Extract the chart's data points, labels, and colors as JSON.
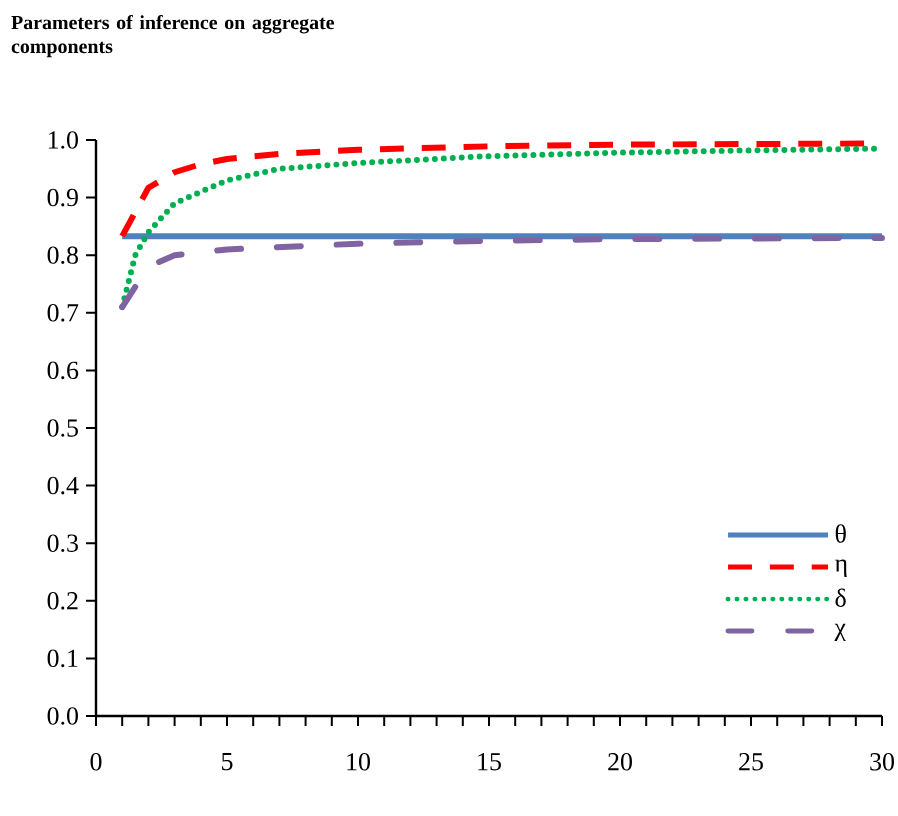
{
  "chart_data": {
    "type": "line",
    "title": "Parameters of inference on aggregate components",
    "xlim": [
      0,
      30
    ],
    "ylim": [
      0.0,
      1.0
    ],
    "xticks": [
      0,
      {
        "value": 1,
        "label": null
      },
      {
        "value": 2,
        "label": null
      },
      {
        "value": 3,
        "label": null
      },
      {
        "value": 4,
        "label": null
      },
      5,
      {
        "value": 6,
        "label": null
      },
      {
        "value": 7,
        "label": null
      },
      {
        "value": 8,
        "label": null
      },
      {
        "value": 9,
        "label": null
      },
      10,
      {
        "value": 11,
        "label": null
      },
      {
        "value": 12,
        "label": null
      },
      {
        "value": 13,
        "label": null
      },
      {
        "value": 14,
        "label": null
      },
      15,
      {
        "value": 16,
        "label": null
      },
      {
        "value": 17,
        "label": null
      },
      {
        "value": 18,
        "label": null
      },
      {
        "value": 19,
        "label": null
      },
      20,
      {
        "value": 21,
        "label": null
      },
      {
        "value": 22,
        "label": null
      },
      {
        "value": 23,
        "label": null
      },
      {
        "value": 24,
        "label": null
      },
      25,
      {
        "value": 26,
        "label": null
      },
      {
        "value": 27,
        "label": null
      },
      {
        "value": 28,
        "label": null
      },
      {
        "value": 29,
        "label": null
      },
      30
    ],
    "yticks": [
      {
        "value": 0.0,
        "label": "0.0"
      },
      {
        "value": 0.1,
        "label": "0.1"
      },
      {
        "value": 0.2,
        "label": "0.2"
      },
      {
        "value": 0.3,
        "label": "0.3"
      },
      {
        "value": 0.4,
        "label": "0.4"
      },
      {
        "value": 0.5,
        "label": "0.5"
      },
      {
        "value": 0.6,
        "label": "0.6"
      },
      {
        "value": 0.7,
        "label": "0.7"
      },
      {
        "value": 0.8,
        "label": "0.8"
      },
      {
        "value": 0.9,
        "label": "0.9"
      },
      {
        "value": 1.0,
        "label": "1.0"
      }
    ],
    "legend": "bottom right",
    "grid": false,
    "series": [
      {
        "name": "θ",
        "color": "#4f81bd",
        "line_style": "solid",
        "x": [
          1,
          30
        ],
        "values": [
          0.833,
          0.833
        ]
      },
      {
        "name": "η",
        "color": "#ff0000",
        "line_style": "dashed",
        "x": [
          1,
          2,
          3,
          4,
          5,
          7,
          10,
          15,
          20,
          25,
          30
        ],
        "values": [
          0.833,
          0.917,
          0.944,
          0.958,
          0.967,
          0.976,
          0.983,
          0.989,
          0.992,
          0.993,
          0.994
        ]
      },
      {
        "name": "δ",
        "color": "#00b050",
        "line_style": "dotted",
        "x": [
          1,
          1.5,
          2,
          3,
          4,
          5,
          7,
          10,
          15,
          20,
          25,
          30
        ],
        "values": [
          0.71,
          0.8,
          0.84,
          0.89,
          0.91,
          0.93,
          0.95,
          0.96,
          0.972,
          0.978,
          0.982,
          0.985
        ]
      },
      {
        "name": "χ",
        "color": "#8064a2",
        "line_style": "dashdot",
        "x": [
          1,
          2,
          3,
          5,
          10,
          15,
          20,
          30
        ],
        "values": [
          0.71,
          0.78,
          0.8,
          0.81,
          0.82,
          0.825,
          0.828,
          0.83
        ]
      }
    ]
  }
}
